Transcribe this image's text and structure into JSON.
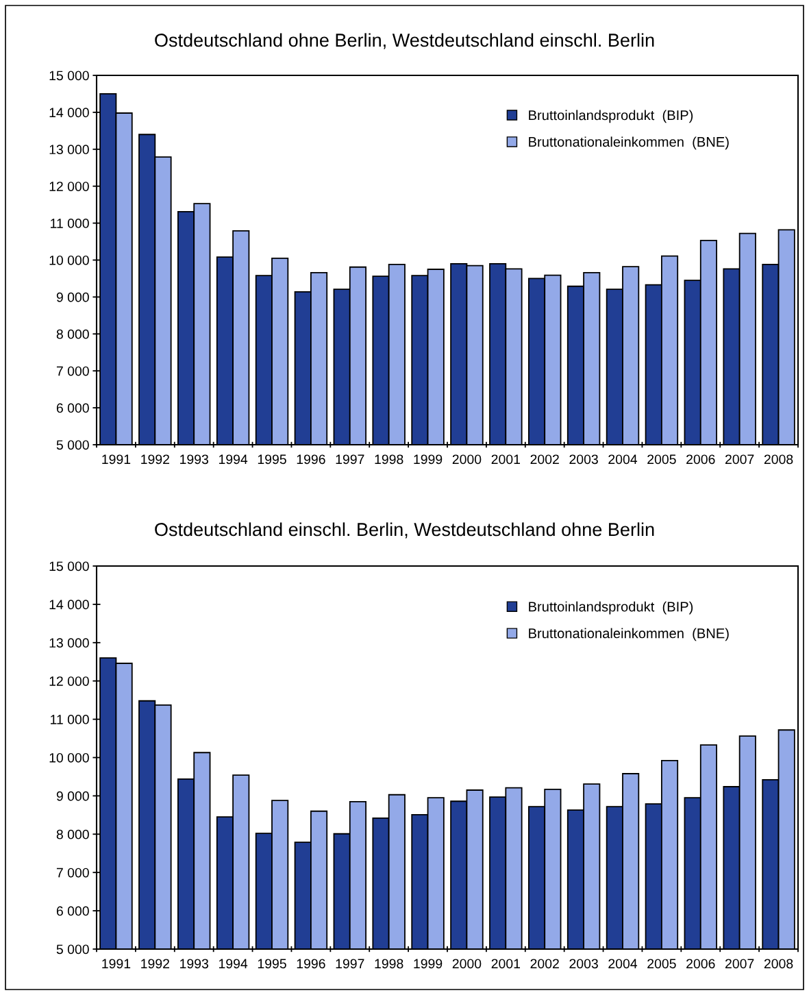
{
  "chart_data": [
    {
      "type": "bar",
      "title": "Ostdeutschland ohne Berlin, Westdeutschland einschl. Berlin",
      "categories": [
        "1991",
        "1992",
        "1993",
        "1994",
        "1995",
        "1996",
        "1997",
        "1998",
        "1999",
        "2000",
        "2001",
        "2002",
        "2003",
        "2004",
        "2005",
        "2006",
        "2007",
        "2008"
      ],
      "series": [
        {
          "name": "Bruttoinlandsprodukt  (BIP)",
          "color": "#213e94",
          "values": [
            14500,
            13400,
            11310,
            10080,
            9580,
            9140,
            9210,
            9560,
            9580,
            9900,
            9900,
            9500,
            9290,
            9210,
            9330,
            9450,
            9760,
            9880
          ]
        },
        {
          "name": "Bruttonationaleinkommen  (BNE)",
          "color": "#93a9e8",
          "values": [
            13980,
            12790,
            11530,
            10790,
            10050,
            9660,
            9810,
            9880,
            9750,
            9850,
            9760,
            9590,
            9660,
            9820,
            10110,
            10530,
            10720,
            10820
          ]
        }
      ],
      "ylim": [
        5000,
        15000
      ],
      "yticks": [
        {
          "value": 5000,
          "label": "5 000"
        },
        {
          "value": 6000,
          "label": "6 000"
        },
        {
          "value": 7000,
          "label": "7 000"
        },
        {
          "value": 8000,
          "label": "8 000"
        },
        {
          "value": 9000,
          "label": "9 000"
        },
        {
          "value": 10000,
          "label": "10 000"
        },
        {
          "value": 11000,
          "label": "11 000"
        },
        {
          "value": 12000,
          "label": "12 000"
        },
        {
          "value": 13000,
          "label": "13 000"
        },
        {
          "value": 14000,
          "label": "14 000"
        },
        {
          "value": 15000,
          "label": "15 000"
        }
      ],
      "grid": false,
      "legend": "top right"
    },
    {
      "type": "bar",
      "title": "Ostdeutschland einschl. Berlin, Westdeutschland ohne Berlin",
      "categories": [
        "1991",
        "1992",
        "1993",
        "1994",
        "1995",
        "1996",
        "1997",
        "1998",
        "1999",
        "2000",
        "2001",
        "2002",
        "2003",
        "2004",
        "2005",
        "2006",
        "2007",
        "2008"
      ],
      "series": [
        {
          "name": "Bruttoinlandsprodukt  (BIP)",
          "color": "#213e94",
          "values": [
            12600,
            11480,
            9440,
            8450,
            8020,
            7790,
            8010,
            8420,
            8510,
            8860,
            8970,
            8720,
            8630,
            8720,
            8790,
            8950,
            9240,
            9420
          ]
        },
        {
          "name": "Bruttonationaleinkommen  (BNE)",
          "color": "#93a9e8",
          "values": [
            12460,
            11370,
            10130,
            9540,
            8880,
            8600,
            8850,
            9030,
            8950,
            9150,
            9210,
            9170,
            9310,
            9580,
            9920,
            10330,
            10560,
            10720
          ]
        }
      ],
      "ylim": [
        5000,
        15000
      ],
      "yticks": [
        {
          "value": 5000,
          "label": "5 000"
        },
        {
          "value": 6000,
          "label": "6 000"
        },
        {
          "value": 7000,
          "label": "7 000"
        },
        {
          "value": 8000,
          "label": "8 000"
        },
        {
          "value": 9000,
          "label": "9 000"
        },
        {
          "value": 10000,
          "label": "10 000"
        },
        {
          "value": 11000,
          "label": "11 000"
        },
        {
          "value": 12000,
          "label": "12 000"
        },
        {
          "value": 13000,
          "label": "13 000"
        },
        {
          "value": 14000,
          "label": "14 000"
        },
        {
          "value": 15000,
          "label": "15 000"
        }
      ],
      "grid": false,
      "legend": "top right"
    }
  ]
}
